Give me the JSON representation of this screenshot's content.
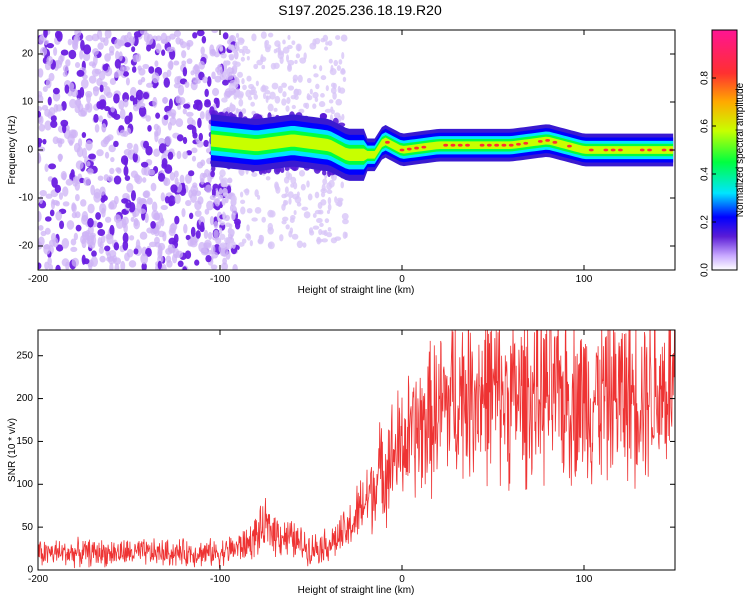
{
  "title": "S197.2025.236.18.19.R20",
  "chart_data": [
    {
      "type": "heatmap",
      "panel": "spectrogram",
      "xlabel": "Height of straight line (km)",
      "ylabel": "Frequency (Hz)",
      "xlim": [
        -200,
        150
      ],
      "ylim": [
        -25,
        25
      ],
      "xticks": [
        -200,
        -100,
        0,
        100
      ],
      "yticks": [
        20,
        10,
        0,
        -10,
        -20
      ],
      "colorbar": {
        "label": "Normalized spectral amplitude",
        "range": [
          0.0,
          1.0
        ],
        "ticks": [
          0.0,
          0.2,
          0.4,
          0.6,
          0.8
        ],
        "tick_labels": [
          "0.0",
          "0.2",
          "0.4",
          "0.6",
          "0.8"
        ],
        "colormap": [
          "#ffffff",
          "#c8a8ff",
          "#5a1cd6",
          "#0000ff",
          "#00e5ff",
          "#00ff40",
          "#c8ff00",
          "#ffaa00",
          "#ff3030",
          "#ff1493"
        ]
      },
      "description_series": [
        {
          "name": "noise region",
          "x_range": [
            -200,
            -100
          ],
          "freq_range": [
            -25,
            25
          ],
          "amplitude": 0.05
        },
        {
          "name": "transition",
          "x_range": [
            -100,
            -30
          ],
          "freq_range": [
            -20,
            24
          ],
          "amplitude": 0.15
        },
        {
          "name": "signal line",
          "x": [
            -105,
            -80,
            -60,
            -40,
            -30,
            -15,
            -10,
            0,
            20,
            40,
            60,
            80,
            100,
            120,
            150
          ],
          "freq": [
            2,
            1,
            2,
            1,
            -1,
            -1,
            2,
            0,
            1,
            1,
            1,
            2,
            0,
            0,
            0
          ],
          "amplitude": 0.9
        }
      ]
    },
    {
      "type": "line",
      "panel": "snr",
      "xlabel": "Height of straight line (km)",
      "ylabel": "SNR (10 * v/v)",
      "xlim": [
        -200,
        150
      ],
      "ylim": [
        0,
        280
      ],
      "xticks": [
        -200,
        -100,
        0,
        100
      ],
      "yticks": [
        0,
        50,
        100,
        150,
        200,
        250
      ],
      "color": "#ee3333",
      "series": [
        {
          "name": "SNR envelope (mean)",
          "x": [
            -200,
            -150,
            -100,
            -85,
            -75,
            -65,
            -50,
            -40,
            -30,
            -20,
            -10,
            0,
            10,
            20,
            30,
            40,
            60,
            80,
            100,
            120,
            150
          ],
          "values": [
            20,
            20,
            20,
            30,
            50,
            40,
            25,
            30,
            45,
            80,
            120,
            145,
            165,
            185,
            205,
            210,
            200,
            205,
            200,
            205,
            215
          ]
        }
      ]
    }
  ]
}
